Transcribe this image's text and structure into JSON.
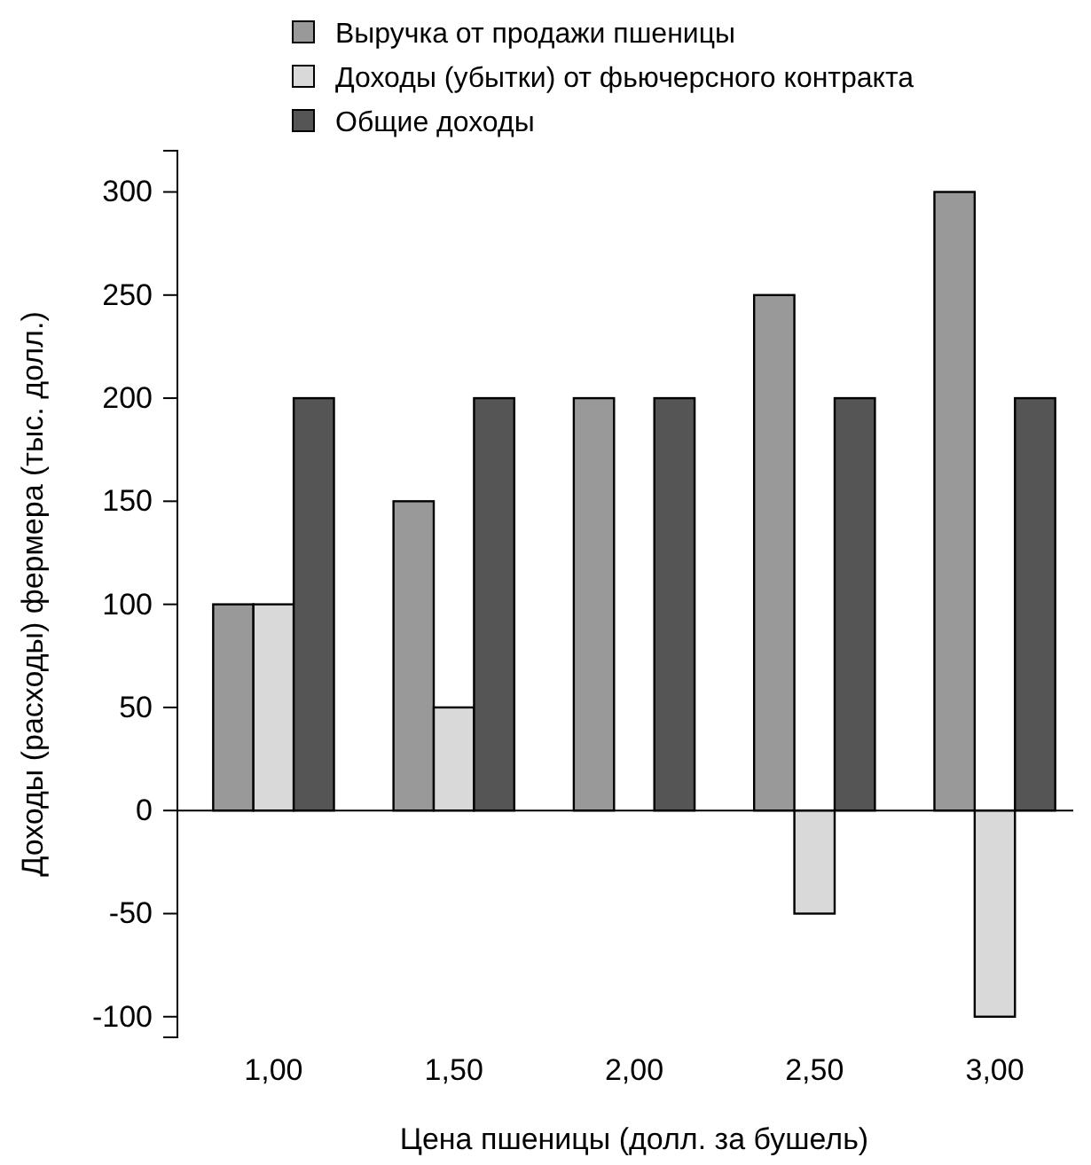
{
  "chart_data": {
    "type": "bar",
    "xlabel": "Цена пшеницы (долл. за бушель)",
    "ylabel": "Доходы (расходы) фермера (тыс. долл.)",
    "categories": [
      "1,00",
      "1,50",
      "2,00",
      "2,50",
      "3,00"
    ],
    "series": [
      {
        "name": "Выручка от продажи пшеницы",
        "color": "#999999",
        "values": [
          100,
          150,
          200,
          250,
          300
        ]
      },
      {
        "name": "Доходы (убытки) от фьючерсного контракта",
        "color": "#d9d9d9",
        "values": [
          100,
          50,
          0,
          -50,
          -100
        ]
      },
      {
        "name": "Общие доходы",
        "color": "#555555",
        "values": [
          200,
          200,
          200,
          200,
          200
        ]
      }
    ],
    "ylim": [
      -110,
      320
    ],
    "yticks": [
      -100,
      -50,
      0,
      50,
      100,
      150,
      200,
      250,
      300
    ],
    "grid": false,
    "legend": "top",
    "ref_lines": [
      {
        "axis": "y",
        "value": 0,
        "color": "#000000"
      }
    ]
  }
}
